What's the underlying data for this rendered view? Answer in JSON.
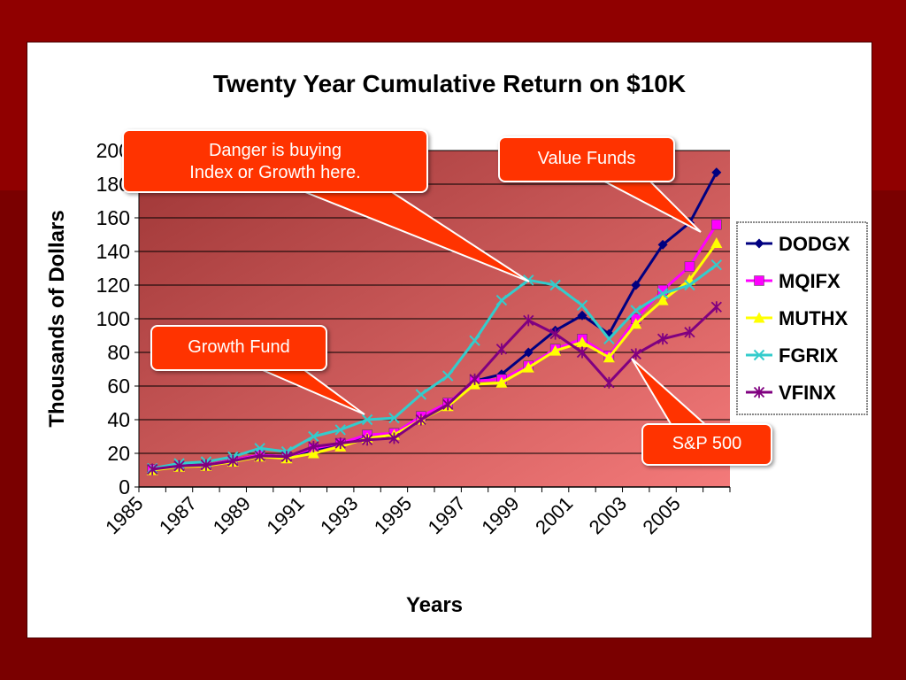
{
  "slide": {
    "title": "Twenty Year Cumulative Return on $10K",
    "callouts": {
      "danger_line1": "Danger is buying",
      "danger_line2": "Index or Growth here.",
      "value_funds": "Value Funds",
      "growth_fund": "Growth Fund",
      "sp500": "S&P 500"
    }
  },
  "colors": {
    "background": "#7a0000",
    "plot_gradient_top": "#9e3636",
    "plot_gradient_bottom": "#f47a7a",
    "callout": "#ff3300"
  },
  "chart_data": {
    "type": "line",
    "title": "Twenty Year Cumulative Return on $10K",
    "xlabel": "Years",
    "ylabel": "Thousands of Dollars",
    "ylim": [
      0,
      200
    ],
    "yticks": [
      "0",
      "20",
      "40",
      "60",
      "80",
      "100",
      "120",
      "140",
      "160",
      "180",
      "200"
    ],
    "xticks": [
      "1985",
      "1987",
      "1989",
      "1991",
      "1993",
      "1995",
      "1997",
      "1999",
      "2001",
      "2003",
      "2005"
    ],
    "x": [
      1985,
      1986,
      1987,
      1988,
      1989,
      1990,
      1991,
      1992,
      1993,
      1994,
      1995,
      1996,
      1997,
      1998,
      1999,
      2000,
      2001,
      2002,
      2003,
      2004,
      2005,
      2006
    ],
    "grid": true,
    "legend_position": "right",
    "series": [
      {
        "name": "DODGX",
        "color": "#000080",
        "marker": "diamond",
        "values": [
          11,
          13,
          13,
          16,
          19,
          18,
          22,
          26,
          29,
          30,
          40,
          48,
          63,
          67,
          80,
          93,
          102,
          91,
          120,
          144,
          157,
          187
        ]
      },
      {
        "name": "MQIFX",
        "color": "#ff00ff",
        "marker": "square",
        "values": [
          10.5,
          12.5,
          13,
          16,
          19,
          18,
          23,
          26,
          31,
          32,
          42,
          50,
          63,
          64,
          72,
          82,
          88,
          78,
          100,
          117,
          131,
          156
        ]
      },
      {
        "name": "MUTHX",
        "color": "#ffff00",
        "marker": "triangle",
        "values": [
          10,
          12,
          12.5,
          15,
          18,
          17,
          20,
          24,
          29,
          31,
          40,
          48,
          61,
          62,
          71,
          81,
          86,
          77,
          97,
          111,
          123,
          145
        ]
      },
      {
        "name": "FGRIX",
        "color": "#33cccc",
        "marker": "x",
        "values": [
          11,
          14,
          15,
          18,
          23,
          21,
          30,
          34,
          40,
          41,
          55,
          66,
          87,
          111,
          123,
          120,
          108,
          88,
          105,
          115,
          120,
          132
        ]
      },
      {
        "name": "VFINX",
        "color": "#800080",
        "marker": "star",
        "values": [
          10.5,
          12.5,
          13,
          15.5,
          18.5,
          18,
          24,
          26,
          28,
          29,
          40,
          49,
          64,
          82,
          99,
          91,
          80,
          62,
          79,
          88,
          92,
          107
        ]
      }
    ]
  }
}
